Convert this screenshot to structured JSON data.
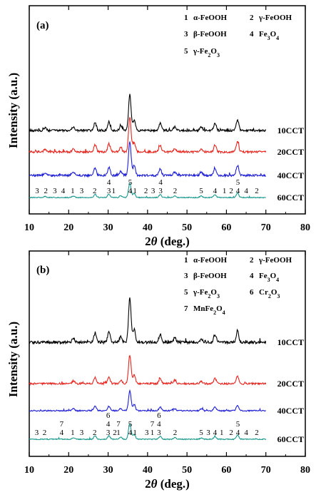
{
  "chart_data": [
    {
      "type": "line",
      "panel_label": "(a)",
      "xlabel": "2θ (deg.)",
      "ylabel": "Intensity (a.u.)",
      "xlim": [
        10,
        80
      ],
      "xticks": [
        10,
        20,
        30,
        40,
        50,
        60,
        70,
        80
      ],
      "legend": [
        {
          "num": "1",
          "name": "α-FeOOH"
        },
        {
          "num": "2",
          "name": "γ-FeOOH"
        },
        {
          "num": "3",
          "name": "β-FeOOH"
        },
        {
          "num": "4",
          "name": "Fe3O4"
        },
        {
          "num": "5",
          "name": "γ-Fe2O3"
        }
      ],
      "series": [
        {
          "name": "60CCT",
          "color": "#1a9a8e"
        },
        {
          "name": "40CCT",
          "color": "#1f1fd6"
        },
        {
          "name": "20CCT",
          "color": "#e8251f"
        },
        {
          "name": "10CCT",
          "color": "#000000"
        }
      ],
      "peaks": [
        {
          "x": 35.5,
          "intensity": 1.0
        },
        {
          "x": 26.7,
          "intensity": 0.22
        },
        {
          "x": 30.2,
          "intensity": 0.24
        },
        {
          "x": 36.6,
          "intensity": 0.28
        },
        {
          "x": 43.2,
          "intensity": 0.2
        },
        {
          "x": 57.1,
          "intensity": 0.2
        },
        {
          "x": 62.8,
          "intensity": 0.3
        },
        {
          "x": 21.2,
          "intensity": 0.1
        },
        {
          "x": 14.0,
          "intensity": 0.08
        },
        {
          "x": 46.9,
          "intensity": 0.1
        },
        {
          "x": 53.6,
          "intensity": 0.1
        },
        {
          "x": 33.2,
          "intensity": 0.12
        }
      ],
      "peak_labels": [
        {
          "x": 12.0,
          "lines": [
            "3"
          ]
        },
        {
          "x": 14.2,
          "lines": [
            "2"
          ]
        },
        {
          "x": 16.5,
          "lines": [
            "3"
          ]
        },
        {
          "x": 18.6,
          "lines": [
            "4"
          ]
        },
        {
          "x": 21.0,
          "lines": [
            "1"
          ]
        },
        {
          "x": 23.3,
          "lines": [
            "3"
          ]
        },
        {
          "x": 26.6,
          "lines": [
            "2"
          ]
        },
        {
          "x": 30.2,
          "lines": [
            "4",
            "3"
          ]
        },
        {
          "x": 31.4,
          "lines": [
            "1"
          ]
        },
        {
          "x": 35.6,
          "lines": [
            "5",
            "4"
          ]
        },
        {
          "x": 36.8,
          "lines": [
            "1"
          ]
        },
        {
          "x": 39.6,
          "lines": [
            "2"
          ]
        },
        {
          "x": 41.4,
          "lines": [
            "3"
          ]
        },
        {
          "x": 43.3,
          "lines": [
            "4",
            "3"
          ]
        },
        {
          "x": 47.0,
          "lines": [
            "2"
          ]
        },
        {
          "x": 53.6,
          "lines": [
            "5"
          ]
        },
        {
          "x": 57.1,
          "lines": [
            "4"
          ]
        },
        {
          "x": 59.5,
          "lines": [
            "1"
          ]
        },
        {
          "x": 61.2,
          "lines": [
            "2"
          ]
        },
        {
          "x": 62.9,
          "lines": [
            "5",
            "4"
          ]
        },
        {
          "x": 65.0,
          "lines": [
            "4"
          ]
        },
        {
          "x": 67.7,
          "lines": [
            "2"
          ]
        }
      ]
    },
    {
      "type": "line",
      "panel_label": "(b)",
      "xlabel": "2θ (deg.)",
      "ylabel": "Intensity (a.u.)",
      "xlim": [
        10,
        80
      ],
      "xticks": [
        10,
        20,
        30,
        40,
        50,
        60,
        70,
        80
      ],
      "legend": [
        {
          "num": "1",
          "name": "α-FeOOH"
        },
        {
          "num": "2",
          "name": "γ-FeOOH"
        },
        {
          "num": "3",
          "name": "β-FeOOH"
        },
        {
          "num": "4",
          "name": "Fe3O4"
        },
        {
          "num": "5",
          "name": "γ-Fe2O3"
        },
        {
          "num": "6",
          "name": "Cr2O3"
        },
        {
          "num": "7",
          "name": "MnFe2O4"
        }
      ],
      "series": [
        {
          "name": "60CCT",
          "color": "#1a9a8e"
        },
        {
          "name": "40CCT",
          "color": "#1f1fd6"
        },
        {
          "name": "20CCT",
          "color": "#e8251f"
        },
        {
          "name": "10CCT",
          "color": "#000000"
        }
      ],
      "peaks": [
        {
          "x": 35.5,
          "intensity": 1.0
        },
        {
          "x": 26.7,
          "intensity": 0.22
        },
        {
          "x": 30.2,
          "intensity": 0.22
        },
        {
          "x": 36.6,
          "intensity": 0.3
        },
        {
          "x": 43.2,
          "intensity": 0.18
        },
        {
          "x": 57.1,
          "intensity": 0.18
        },
        {
          "x": 62.8,
          "intensity": 0.26
        },
        {
          "x": 21.2,
          "intensity": 0.1
        },
        {
          "x": 33.2,
          "intensity": 0.12
        },
        {
          "x": 46.9,
          "intensity": 0.1
        },
        {
          "x": 53.6,
          "intensity": 0.08
        }
      ],
      "peak_labels": [
        {
          "x": 11.9,
          "lines": [
            "3"
          ]
        },
        {
          "x": 13.9,
          "lines": [
            "2"
          ]
        },
        {
          "x": 18.2,
          "lines": [
            "7",
            "4"
          ]
        },
        {
          "x": 21.0,
          "lines": [
            "1"
          ]
        },
        {
          "x": 23.3,
          "lines": [
            "3"
          ]
        },
        {
          "x": 26.6,
          "lines": [
            "2"
          ]
        },
        {
          "x": 30.0,
          "lines": [
            "6",
            "4",
            "3"
          ]
        },
        {
          "x": 31.7,
          "lines": [
            "2"
          ]
        },
        {
          "x": 32.6,
          "lines": [
            "7",
            "1"
          ]
        },
        {
          "x": 35.6,
          "lines": [
            "5",
            "4"
          ]
        },
        {
          "x": 36.8,
          "lines": [
            "1"
          ]
        },
        {
          "x": 39.8,
          "lines": [
            "3"
          ]
        },
        {
          "x": 41.2,
          "lines": [
            "7",
            "1"
          ]
        },
        {
          "x": 42.9,
          "lines": [
            "6",
            "4",
            "3"
          ]
        },
        {
          "x": 47.0,
          "lines": [
            "2"
          ]
        },
        {
          "x": 53.6,
          "lines": [
            "5"
          ]
        },
        {
          "x": 55.4,
          "lines": [
            "3"
          ]
        },
        {
          "x": 57.1,
          "lines": [
            "4"
          ]
        },
        {
          "x": 58.8,
          "lines": [
            "1"
          ]
        },
        {
          "x": 61.2,
          "lines": [
            "2"
          ]
        },
        {
          "x": 62.9,
          "lines": [
            "5",
            "4"
          ]
        },
        {
          "x": 65.0,
          "lines": [
            "4"
          ]
        },
        {
          "x": 67.7,
          "lines": [
            "2"
          ]
        }
      ]
    }
  ]
}
